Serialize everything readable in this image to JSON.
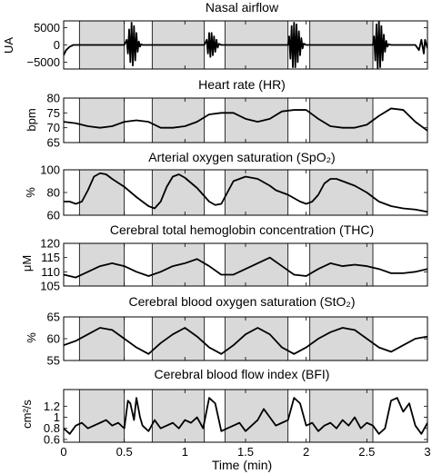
{
  "chart_data": [
    {
      "type": "line",
      "title": "Nasal airflow",
      "ylabel": "UA",
      "ylim": [
        -7000,
        7000
      ],
      "yticks": [
        5000,
        0,
        -5000
      ],
      "ytick_labels": [
        "5000",
        "0",
        "−5000"
      ],
      "xlim": [
        0,
        3
      ],
      "shaded_intervals": [
        [
          0.13,
          0.5
        ],
        [
          0.73,
          1.16
        ],
        [
          1.33,
          1.85
        ],
        [
          2.03,
          2.55
        ]
      ],
      "series": [
        {
          "color": "#000000",
          "x": [
            0,
            0.02,
            0.05,
            0.08,
            0.13,
            0.5,
            0.52,
            0.53,
            0.54,
            0.55,
            0.56,
            0.57,
            0.58,
            0.59,
            0.6,
            0.61,
            0.62,
            0.63,
            0.64,
            0.65,
            0.73,
            1.16,
            1.18,
            1.19,
            1.2,
            1.21,
            1.22,
            1.23,
            1.24,
            1.25,
            1.26,
            1.27,
            1.28,
            1.3,
            1.33,
            1.85,
            1.86,
            1.87,
            1.88,
            1.89,
            1.9,
            1.91,
            1.92,
            1.93,
            1.94,
            1.95,
            1.96,
            1.97,
            1.98,
            2.0,
            2.03,
            2.55,
            2.56,
            2.57,
            2.58,
            2.59,
            2.6,
            2.61,
            2.62,
            2.63,
            2.64,
            2.65,
            2.66,
            2.67,
            2.68,
            2.7,
            2.75,
            2.8,
            2.9,
            2.93,
            2.95,
            2.97,
            2.98,
            3.0
          ],
          "y": [
            -3000,
            -1500,
            -500,
            0,
            0,
            0,
            1500,
            -2500,
            4500,
            -5000,
            6500,
            -6000,
            5500,
            -4500,
            3500,
            -2000,
            1000,
            -500,
            200,
            0,
            0,
            0,
            1500,
            -2500,
            3500,
            -3500,
            3500,
            -3000,
            2500,
            -2000,
            1500,
            -800,
            300,
            0,
            0,
            0,
            2500,
            -4000,
            5500,
            -6500,
            6500,
            -6500,
            6000,
            -5000,
            4000,
            -3000,
            2000,
            -1000,
            400,
            0,
            0,
            0,
            2500,
            -4500,
            6000,
            -7000,
            7000,
            -6500,
            5500,
            -4500,
            3000,
            -2000,
            1200,
            -500,
            200,
            0,
            0,
            0,
            0,
            -1500,
            1500,
            -2500,
            1500,
            -1000
          ]
        }
      ]
    },
    {
      "type": "line",
      "title": "Heart rate (HR)",
      "ylabel": "bpm",
      "ylim": [
        65,
        80
      ],
      "yticks": [
        80,
        75,
        70,
        65
      ],
      "ytick_labels": [
        "80",
        "75",
        "70",
        "65"
      ],
      "xlim": [
        0,
        3
      ],
      "shaded_intervals": [
        [
          0.13,
          0.5
        ],
        [
          0.73,
          1.16
        ],
        [
          1.33,
          1.85
        ],
        [
          2.03,
          2.55
        ]
      ],
      "series": [
        {
          "color": "#000000",
          "x": [
            0,
            0.1,
            0.2,
            0.3,
            0.4,
            0.5,
            0.6,
            0.7,
            0.8,
            0.9,
            1.0,
            1.1,
            1.2,
            1.3,
            1.4,
            1.5,
            1.6,
            1.7,
            1.8,
            1.9,
            2.0,
            2.1,
            2.2,
            2.3,
            2.4,
            2.5,
            2.6,
            2.7,
            2.8,
            2.9,
            3.0
          ],
          "y": [
            72,
            71.5,
            70.5,
            70,
            70.5,
            72,
            72.5,
            72,
            70,
            70,
            70.5,
            72,
            74.5,
            75,
            75,
            73,
            72,
            73,
            75.5,
            76,
            76,
            73,
            70.5,
            70,
            70,
            71,
            74,
            76.5,
            76,
            72,
            69
          ]
        }
      ]
    },
    {
      "type": "line",
      "title": "Arterial oxygen saturation (SpO₂)",
      "ylabel": "%",
      "ylim": [
        60,
        100
      ],
      "yticks": [
        100,
        80,
        60
      ],
      "ytick_labels": [
        "100",
        "80",
        "60"
      ],
      "xlim": [
        0,
        3
      ],
      "shaded_intervals": [
        [
          0.13,
          0.5
        ],
        [
          0.73,
          1.16
        ],
        [
          1.33,
          1.85
        ],
        [
          2.03,
          2.55
        ]
      ],
      "series": [
        {
          "color": "#000000",
          "x": [
            0,
            0.05,
            0.1,
            0.15,
            0.2,
            0.25,
            0.3,
            0.35,
            0.4,
            0.5,
            0.6,
            0.7,
            0.75,
            0.8,
            0.85,
            0.9,
            0.95,
            1.0,
            1.1,
            1.2,
            1.25,
            1.3,
            1.35,
            1.4,
            1.5,
            1.6,
            1.7,
            1.75,
            1.85,
            1.95,
            2.0,
            2.05,
            2.1,
            2.15,
            2.2,
            2.25,
            2.3,
            2.4,
            2.5,
            2.6,
            2.7,
            2.8,
            2.9,
            3.0
          ],
          "y": [
            72,
            72,
            70,
            72,
            82,
            94,
            97,
            96,
            92,
            85,
            76,
            68,
            66,
            72,
            85,
            94,
            96,
            93,
            84,
            72,
            69,
            70,
            80,
            90,
            94,
            92,
            86,
            82,
            78,
            72,
            70,
            72,
            78,
            88,
            92,
            92,
            90,
            86,
            80,
            72,
            68,
            66,
            65,
            63
          ]
        }
      ]
    },
    {
      "type": "line",
      "title": "Cerebral total hemoglobin concentration (THC)",
      "ylabel": "μM",
      "ylim": [
        105,
        120
      ],
      "yticks": [
        120,
        115,
        110,
        105
      ],
      "ytick_labels": [
        "120",
        "115",
        "110",
        "105"
      ],
      "xlim": [
        0,
        3
      ],
      "shaded_intervals": [
        [
          0.13,
          0.5
        ],
        [
          0.73,
          1.16
        ],
        [
          1.33,
          1.85
        ],
        [
          2.03,
          2.55
        ]
      ],
      "series": [
        {
          "color": "#000000",
          "x": [
            0,
            0.1,
            0.2,
            0.3,
            0.4,
            0.5,
            0.6,
            0.7,
            0.8,
            0.9,
            1.0,
            1.1,
            1.2,
            1.3,
            1.4,
            1.5,
            1.6,
            1.7,
            1.8,
            1.9,
            2.0,
            2.1,
            2.2,
            2.3,
            2.4,
            2.5,
            2.6,
            2.7,
            2.8,
            2.9,
            3.0
          ],
          "y": [
            109,
            108,
            110,
            112,
            113,
            112,
            110,
            108.5,
            110,
            112,
            113,
            114.5,
            112,
            109,
            109,
            111,
            113,
            115,
            112,
            109,
            108.5,
            111,
            113,
            112,
            112.5,
            112,
            111,
            109.5,
            109.5,
            110,
            111
          ]
        }
      ]
    },
    {
      "type": "line",
      "title": "Cerebral blood oxygen saturation (StO₂)",
      "ylabel": "%",
      "ylim": [
        55,
        65
      ],
      "yticks": [
        65,
        60,
        55
      ],
      "ytick_labels": [
        "65",
        "60",
        "55"
      ],
      "xlim": [
        0,
        3
      ],
      "shaded_intervals": [
        [
          0.13,
          0.5
        ],
        [
          0.73,
          1.16
        ],
        [
          1.33,
          1.85
        ],
        [
          2.03,
          2.55
        ]
      ],
      "series": [
        {
          "color": "#000000",
          "x": [
            0,
            0.1,
            0.2,
            0.3,
            0.4,
            0.5,
            0.6,
            0.7,
            0.8,
            0.9,
            1.0,
            1.1,
            1.2,
            1.3,
            1.4,
            1.5,
            1.6,
            1.7,
            1.8,
            1.9,
            2.0,
            2.1,
            2.2,
            2.3,
            2.4,
            2.5,
            2.6,
            2.7,
            2.8,
            2.9,
            3.0
          ],
          "y": [
            58.5,
            59.5,
            61,
            62.5,
            62,
            60,
            58,
            56.5,
            59,
            61,
            62.5,
            60.5,
            58,
            56.5,
            58.5,
            61,
            62.5,
            61,
            58,
            56.5,
            58,
            60,
            61.5,
            62.5,
            62,
            60,
            58,
            57,
            58.5,
            60,
            60.5
          ]
        }
      ]
    },
    {
      "type": "line",
      "title": "Cerebral blood flow index (BFI)",
      "ylabel": "cm²/s",
      "ylim": [
        0.55,
        1.5
      ],
      "yticks": [
        1.2,
        1,
        0.8,
        0.6
      ],
      "ytick_labels": [
        "1.2",
        "1",
        "0.8",
        "0.6"
      ],
      "xlim": [
        0,
        3
      ],
      "xticks": [
        0,
        0.5,
        1,
        1.5,
        2,
        2.5,
        3
      ],
      "xtick_labels": [
        "0",
        "0.5",
        "1",
        "1.5",
        "2",
        "2.5",
        "3"
      ],
      "xlabel": "Time (min)",
      "shaded_intervals": [
        [
          0.13,
          0.5
        ],
        [
          0.73,
          1.16
        ],
        [
          1.33,
          1.85
        ],
        [
          2.03,
          2.55
        ]
      ],
      "series": [
        {
          "color": "#000000",
          "x": [
            0,
            0.05,
            0.1,
            0.15,
            0.2,
            0.25,
            0.3,
            0.35,
            0.4,
            0.45,
            0.5,
            0.53,
            0.55,
            0.58,
            0.6,
            0.63,
            0.65,
            0.7,
            0.75,
            0.8,
            0.85,
            0.9,
            0.95,
            1.0,
            1.05,
            1.1,
            1.15,
            1.2,
            1.25,
            1.3,
            1.35,
            1.4,
            1.45,
            1.5,
            1.55,
            1.6,
            1.65,
            1.7,
            1.75,
            1.8,
            1.85,
            1.9,
            1.95,
            2.0,
            2.05,
            2.1,
            2.15,
            2.2,
            2.25,
            2.3,
            2.35,
            2.4,
            2.45,
            2.5,
            2.55,
            2.6,
            2.65,
            2.7,
            2.75,
            2.8,
            2.85,
            2.9,
            2.95,
            3.0
          ],
          "y": [
            0.8,
            0.7,
            0.85,
            0.9,
            0.8,
            0.85,
            0.9,
            0.95,
            0.85,
            0.9,
            0.8,
            1.3,
            1.25,
            0.95,
            1.35,
            1.0,
            0.85,
            0.75,
            0.95,
            0.8,
            0.85,
            0.9,
            0.8,
            0.95,
            0.9,
            1.0,
            0.8,
            1.35,
            1.25,
            0.75,
            0.8,
            0.85,
            0.9,
            0.75,
            0.85,
            0.95,
            1.15,
            1.0,
            0.85,
            0.9,
            0.95,
            1.35,
            1.25,
            0.85,
            0.9,
            0.75,
            0.85,
            0.9,
            0.8,
            0.95,
            0.85,
            1.0,
            0.8,
            0.9,
            0.85,
            0.7,
            0.8,
            1.3,
            1.35,
            1.1,
            1.25,
            0.85,
            0.7,
            0.9
          ]
        }
      ]
    }
  ]
}
